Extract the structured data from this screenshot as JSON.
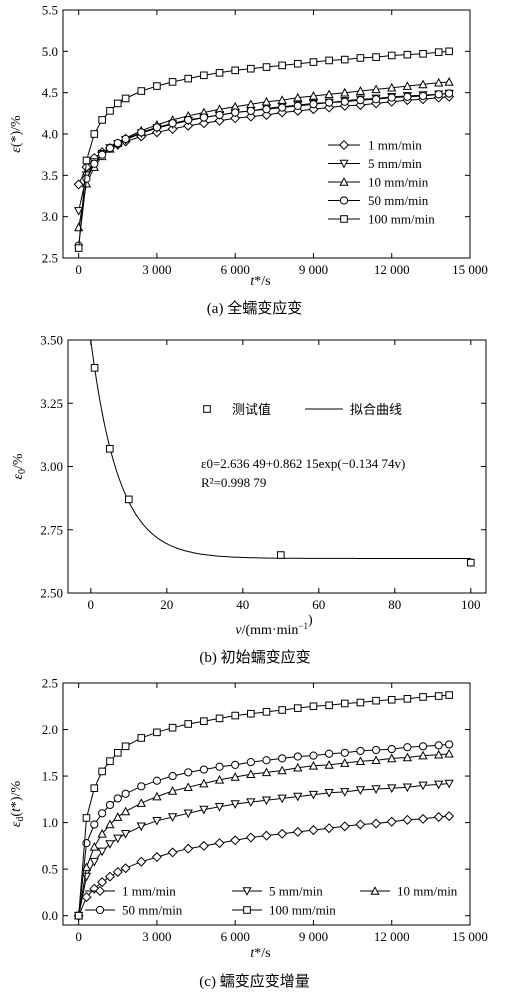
{
  "chart_data": [
    {
      "type": "line",
      "panel": "a",
      "caption": "(a) 全蠕变应变",
      "xlabel": "t*/s",
      "ylabel": "ε(*)/%",
      "xlim": [
        -600,
        15000
      ],
      "ylim": [
        2.5,
        5.5
      ],
      "xticks": [
        0,
        3000,
        6000,
        9000,
        12000,
        15000
      ],
      "xtick_labels": [
        "0",
        "3 000",
        "6 000",
        "9 000",
        "12 000",
        "15 000"
      ],
      "yticks": [
        2.5,
        3.0,
        3.5,
        4.0,
        4.5,
        5.0,
        5.5
      ],
      "ytick_labels": [
        "2.5",
        "3.0",
        "3.5",
        "4.0",
        "4.5",
        "5.0",
        "5.5"
      ],
      "legend_position": "right-middle",
      "marker_x": [
        0,
        300,
        600,
        900,
        1200,
        1500,
        1800,
        2400,
        3000,
        3600,
        4200,
        4800,
        5400,
        6000,
        6600,
        7200,
        7800,
        8400,
        9000,
        9600,
        10200,
        10800,
        11400,
        12000,
        12600,
        13200,
        13800,
        14200
      ],
      "series": [
        {
          "name": "1 mm/min",
          "marker": "diamond",
          "e0": 3.39,
          "values": [
            3.39,
            3.6,
            3.71,
            3.78,
            3.83,
            3.87,
            3.91,
            3.97,
            4.02,
            4.06,
            4.1,
            4.13,
            4.16,
            4.19,
            4.21,
            4.23,
            4.26,
            4.28,
            4.3,
            4.32,
            4.34,
            4.35,
            4.37,
            4.39,
            4.41,
            4.42,
            4.44,
            4.45
          ]
        },
        {
          "name": "5 mm/min",
          "marker": "triangle-down",
          "e0": 3.07,
          "values": [
            3.07,
            3.5,
            3.66,
            3.76,
            3.83,
            3.88,
            3.93,
            4.01,
            4.07,
            4.12,
            4.16,
            4.2,
            4.23,
            4.26,
            4.28,
            4.31,
            4.33,
            4.35,
            4.37,
            4.38,
            4.4,
            4.42,
            4.43,
            4.45,
            4.46,
            4.47,
            4.48,
            4.49
          ]
        },
        {
          "name": "10 mm/min",
          "marker": "triangle-up",
          "e0": 2.87,
          "values": [
            2.87,
            3.4,
            3.6,
            3.73,
            3.82,
            3.89,
            3.95,
            4.04,
            4.11,
            4.17,
            4.22,
            4.26,
            4.3,
            4.33,
            4.36,
            4.39,
            4.41,
            4.44,
            4.46,
            4.48,
            4.5,
            4.52,
            4.54,
            4.56,
            4.58,
            4.6,
            4.62,
            4.63
          ]
        },
        {
          "name": "50 mm/min",
          "marker": "circle",
          "e0": 2.65,
          "values": [
            2.65,
            3.46,
            3.64,
            3.75,
            3.83,
            3.89,
            3.94,
            4.02,
            4.08,
            4.13,
            4.17,
            4.2,
            4.23,
            4.26,
            4.28,
            4.3,
            4.32,
            4.34,
            4.36,
            4.38,
            4.39,
            4.41,
            4.42,
            4.44,
            4.45,
            4.46,
            4.48,
            4.49
          ]
        },
        {
          "name": "100 mm/min",
          "marker": "square",
          "e0": 2.62,
          "values": [
            2.62,
            3.68,
            4.0,
            4.17,
            4.28,
            4.37,
            4.43,
            4.52,
            4.58,
            4.63,
            4.67,
            4.71,
            4.74,
            4.77,
            4.79,
            4.81,
            4.83,
            4.85,
            4.87,
            4.89,
            4.9,
            4.92,
            4.93,
            4.95,
            4.96,
            4.97,
            4.99,
            5.0
          ]
        }
      ]
    },
    {
      "type": "scatter",
      "panel": "b",
      "caption": "(b) 初始蠕变应变",
      "xlabel": "v/(mm·min⁻¹)",
      "ylabel": "ε0/%",
      "xlim": [
        -6,
        104
      ],
      "ylim": [
        2.5,
        3.5
      ],
      "xticks": [
        0,
        20,
        40,
        60,
        80,
        100
      ],
      "xtick_labels": [
        "0",
        "20",
        "40",
        "60",
        "80",
        "100"
      ],
      "yticks": [
        2.5,
        2.75,
        3.0,
        3.25,
        3.5
      ],
      "ytick_labels": [
        "2.50",
        "2.75",
        "3.00",
        "3.25",
        "3.50"
      ],
      "measured": {
        "name": "测试值",
        "x": [
          1,
          5,
          10,
          50,
          100
        ],
        "y": [
          3.39,
          3.07,
          2.87,
          2.65,
          2.62
        ]
      },
      "fit": {
        "name": "拟合曲线",
        "a": 2.63649,
        "b": 0.86215,
        "k": 0.13474
      },
      "equation": "ε0=2.636 49+0.862 15exp(−0.134 74v)",
      "r2": "R²=0.998 79"
    },
    {
      "type": "line",
      "panel": "c",
      "caption": "(c) 蠕变应变增量",
      "xlabel": "t*/s",
      "ylabel": "εd(t*)/%",
      "xlim": [
        -600,
        15000
      ],
      "ylim": [
        -0.1,
        2.5
      ],
      "xticks": [
        0,
        3000,
        6000,
        9000,
        12000,
        15000
      ],
      "xtick_labels": [
        "0",
        "3 000",
        "6 000",
        "9 000",
        "12 000",
        "15 000"
      ],
      "yticks": [
        0.0,
        0.5,
        1.0,
        1.5,
        2.0,
        2.5
      ],
      "ytick_labels": [
        "0.0",
        "0.5",
        "1.0",
        "1.5",
        "2.0",
        "2.5"
      ],
      "legend_position": "bottom",
      "marker_x": [
        0,
        300,
        600,
        900,
        1200,
        1500,
        1800,
        2400,
        3000,
        3600,
        4200,
        4800,
        5400,
        6000,
        6600,
        7200,
        7800,
        8400,
        9000,
        9600,
        10200,
        10800,
        11400,
        12000,
        12600,
        13200,
        13800,
        14200
      ],
      "series": [
        {
          "name": "1 mm/min",
          "marker": "diamond",
          "values": [
            0.0,
            0.2,
            0.29,
            0.36,
            0.42,
            0.47,
            0.51,
            0.58,
            0.63,
            0.68,
            0.72,
            0.75,
            0.78,
            0.81,
            0.84,
            0.86,
            0.88,
            0.9,
            0.92,
            0.94,
            0.96,
            0.98,
            0.99,
            1.01,
            1.03,
            1.04,
            1.06,
            1.07
          ]
        },
        {
          "name": "5 mm/min",
          "marker": "triangle-down",
          "values": [
            0.0,
            0.42,
            0.58,
            0.69,
            0.77,
            0.83,
            0.88,
            0.96,
            1.02,
            1.06,
            1.1,
            1.14,
            1.17,
            1.2,
            1.22,
            1.24,
            1.26,
            1.28,
            1.3,
            1.32,
            1.33,
            1.35,
            1.36,
            1.37,
            1.38,
            1.4,
            1.41,
            1.42
          ]
        },
        {
          "name": "10 mm/min",
          "marker": "triangle-up",
          "values": [
            0.0,
            0.52,
            0.74,
            0.88,
            0.98,
            1.06,
            1.12,
            1.21,
            1.28,
            1.34,
            1.38,
            1.42,
            1.46,
            1.49,
            1.52,
            1.54,
            1.56,
            1.59,
            1.61,
            1.62,
            1.64,
            1.66,
            1.67,
            1.69,
            1.7,
            1.72,
            1.73,
            1.74
          ]
        },
        {
          "name": "50 mm/min",
          "marker": "circle",
          "values": [
            0.0,
            0.78,
            0.98,
            1.1,
            1.19,
            1.26,
            1.31,
            1.39,
            1.45,
            1.5,
            1.54,
            1.57,
            1.6,
            1.62,
            1.65,
            1.67,
            1.69,
            1.71,
            1.72,
            1.74,
            1.75,
            1.77,
            1.78,
            1.79,
            1.81,
            1.82,
            1.83,
            1.84
          ]
        },
        {
          "name": "100 mm/min",
          "marker": "square",
          "values": [
            0.0,
            1.05,
            1.37,
            1.55,
            1.66,
            1.75,
            1.82,
            1.91,
            1.97,
            2.02,
            2.06,
            2.09,
            2.12,
            2.15,
            2.17,
            2.19,
            2.21,
            2.23,
            2.25,
            2.26,
            2.28,
            2.29,
            2.31,
            2.32,
            2.33,
            2.35,
            2.36,
            2.37
          ]
        }
      ]
    }
  ]
}
